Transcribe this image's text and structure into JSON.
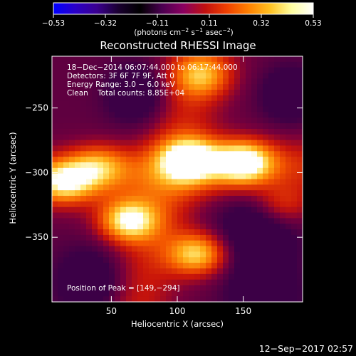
{
  "colorbar": {
    "ticks": [
      "−0.53",
      "−0.32",
      "−0.11",
      "0.11",
      "0.32",
      "0.53"
    ],
    "unit_prefix": "(photons cm",
    "unit_exp1": "−2",
    "unit_mid1": " s",
    "unit_exp2": "−1",
    "unit_mid2": " asec",
    "unit_exp3": "−2",
    "unit_suffix": ")",
    "colors": [
      "#0000ff",
      "#2a00c8",
      "#3a0090",
      "#1a0030",
      "#000000",
      "#4a0050",
      "#8a0060",
      "#c01010",
      "#f04000",
      "#ff8000",
      "#ffc020",
      "#ffffa0",
      "#ffffff"
    ]
  },
  "chart_data": {
    "type": "heatmap",
    "title": "Reconstructed RHESSI Image",
    "xlabel": "Heliocentric X (arcsec)",
    "ylabel": "Heliocentric Y (arcsec)",
    "xlim": [
      5,
      195
    ],
    "ylim": [
      -400,
      -210
    ],
    "x_ticks": [
      50,
      100,
      150
    ],
    "y_ticks": [
      -250,
      -300,
      -350
    ],
    "y_tick_labels": [
      "−250",
      "−300",
      "−350"
    ],
    "annotations": {
      "line1": "18−Dec−2014 06:07:44.000 to 06:17:44.000",
      "line2": "Detectors: 3F 6F 7F 9F, Att 0",
      "line3": "Energy Range: 3.0 − 6.0 keV",
      "line4": "Clean    Total counts: 8.85E+04",
      "peak": "Position of Peak = [149,−294]"
    },
    "peak_x": 149,
    "peak_y": -294,
    "sources": [
      {
        "x": 110,
        "y": -290,
        "intensity": 0.53
      },
      {
        "x": 150,
        "y": -292,
        "intensity": 0.53
      },
      {
        "x": 63,
        "y": -337,
        "intensity": 0.5
      },
      {
        "x": 115,
        "y": -363,
        "intensity": 0.44
      },
      {
        "x": 15,
        "y": -307,
        "intensity": 0.4
      },
      {
        "x": 118,
        "y": -225,
        "intensity": 0.3
      },
      {
        "x": 40,
        "y": -295,
        "intensity": 0.28
      },
      {
        "x": 180,
        "y": -325,
        "intensity": 0.2
      }
    ]
  },
  "footer": {
    "timestamp": "12−Sep−2017 02:57"
  }
}
